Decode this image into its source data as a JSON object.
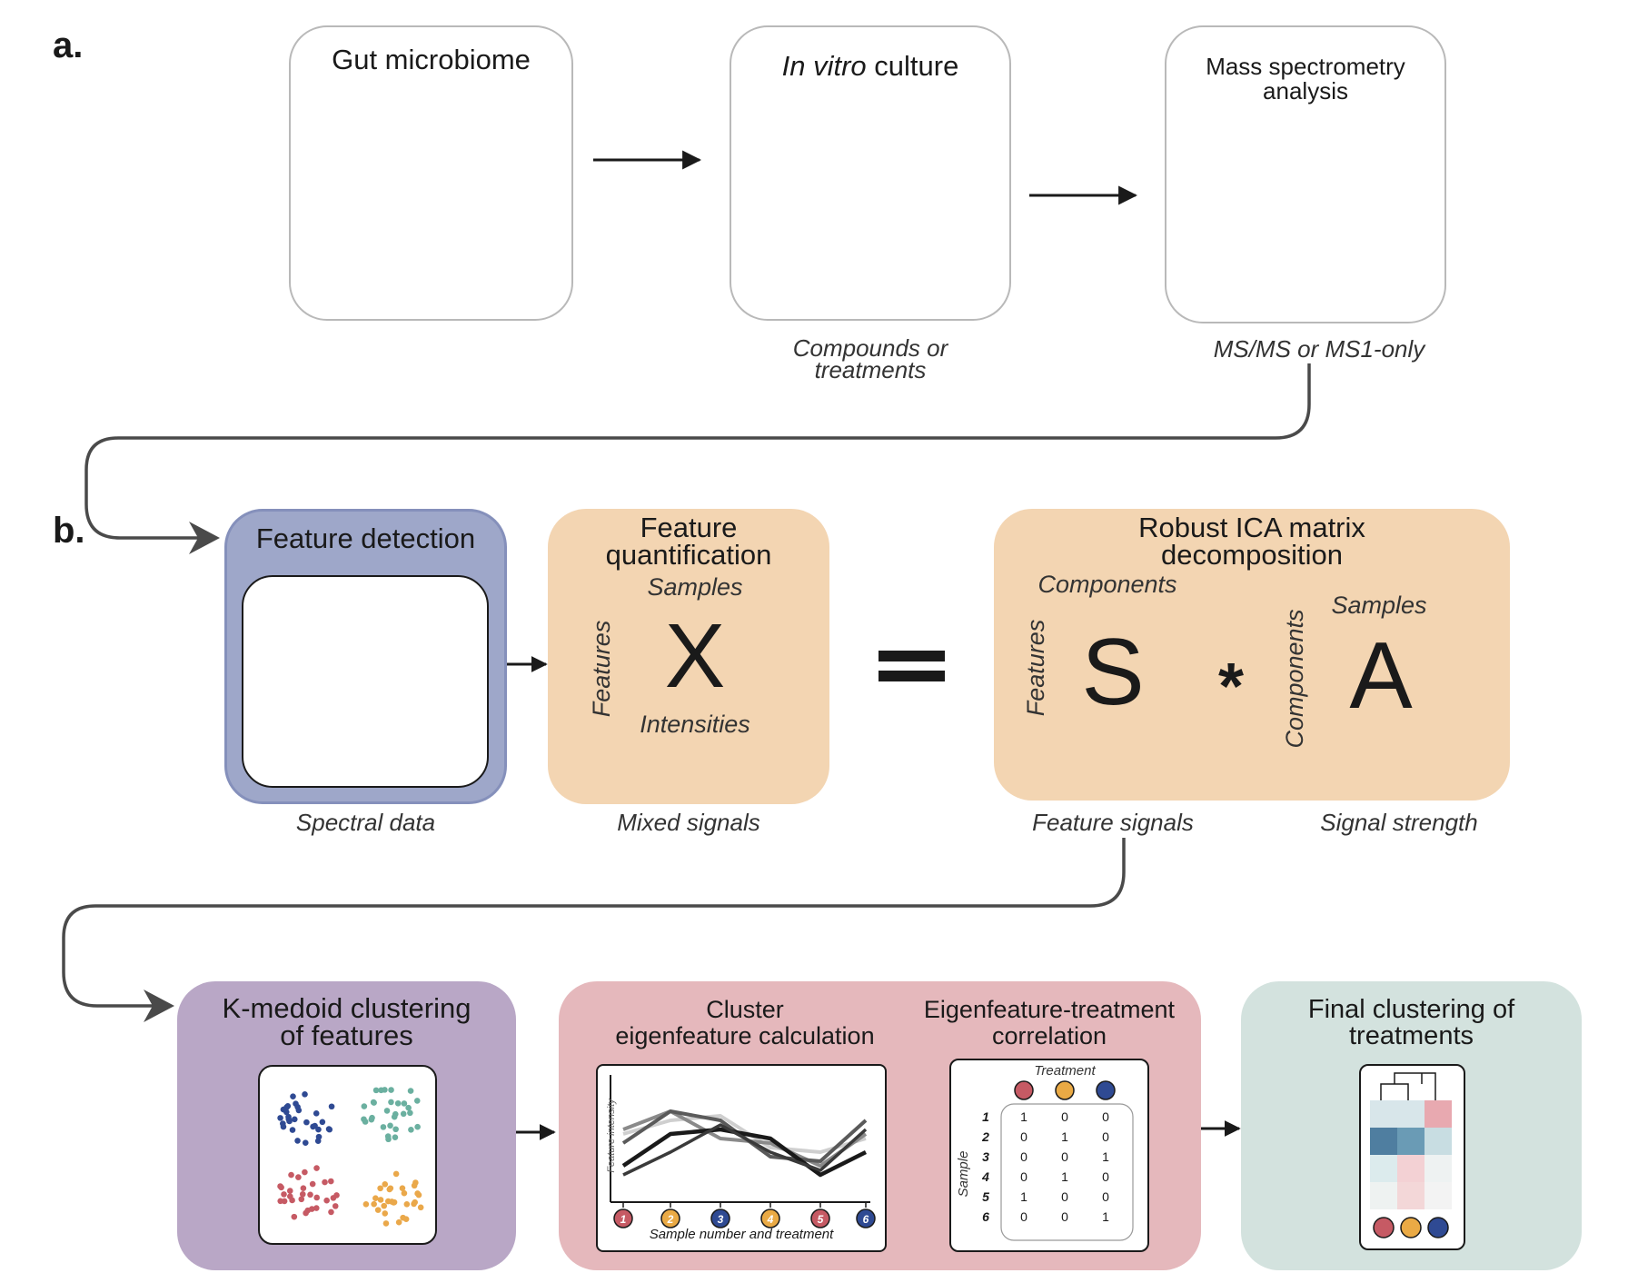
{
  "panel_labels": {
    "a": "a.",
    "b": "b."
  },
  "row_a": {
    "gut": {
      "title": "Gut microbiome"
    },
    "culture": {
      "title_italic": "In vitro",
      "title_rest": " culture",
      "caption_line1": "Compounds or",
      "caption_line2": "treatments"
    },
    "ms": {
      "title_line1": "Mass spectrometry",
      "title_line2": "analysis",
      "caption": "MS/MS or MS1-only"
    }
  },
  "row_b": {
    "detection": {
      "title": "Feature detection",
      "caption": "Spectral data"
    },
    "quant": {
      "title_line1": "Feature",
      "title_line2": "quantification",
      "samples": "Samples",
      "features": "Features",
      "matrix": "X",
      "intensities": "Intensities",
      "caption": "Mixed signals"
    },
    "ica": {
      "title_line1": "Robust ICA matrix",
      "title_line2": "decomposition",
      "components_top": "Components",
      "features": "Features",
      "matrix_s": "S",
      "times": "*",
      "components_side": "Components",
      "samples": "Samples",
      "matrix_a": "A",
      "caption_s": "Feature signals",
      "caption_a": "Signal strength"
    }
  },
  "row_c": {
    "kmedoid": {
      "title_line1": "K-medoid clustering",
      "title_line2": "of features"
    },
    "eigen": {
      "title_line1": "Cluster",
      "title_line2": "eigenfeature calculation",
      "yaxis": "Feature intensity",
      "xaxis": "Sample number and treatment",
      "samples": [
        "1",
        "2",
        "3",
        "4",
        "5",
        "6"
      ]
    },
    "corr": {
      "title_line1": "Eigenfeature-treatment",
      "title_line2": "correlation",
      "treatment": "Treatment",
      "sample": "Sample",
      "rows": [
        {
          "label": "1",
          "cells": [
            "1",
            "0",
            "0"
          ]
        },
        {
          "label": "2",
          "cells": [
            "0",
            "1",
            "0"
          ]
        },
        {
          "label": "3",
          "cells": [
            "0",
            "0",
            "1"
          ]
        },
        {
          "label": "4",
          "cells": [
            "0",
            "1",
            "0"
          ]
        },
        {
          "label": "5",
          "cells": [
            "1",
            "0",
            "0"
          ]
        },
        {
          "label": "6",
          "cells": [
            "0",
            "0",
            "1"
          ]
        }
      ]
    },
    "final": {
      "title_line1": "Final clustering of",
      "title_line2": "treatments"
    }
  },
  "colors": {
    "detection_bg": "#9ea7c9",
    "detection_border": "#8d98c0",
    "quant_bg": "#f3d5b2",
    "kmedoid_bg": "#b9a7c6",
    "eigen_bg": "#e5b8bc",
    "final_bg": "#d3e2de",
    "treatment_red": "#c65a64",
    "treatment_orange": "#eaaa45",
    "treatment_blue": "#2f4a93"
  }
}
